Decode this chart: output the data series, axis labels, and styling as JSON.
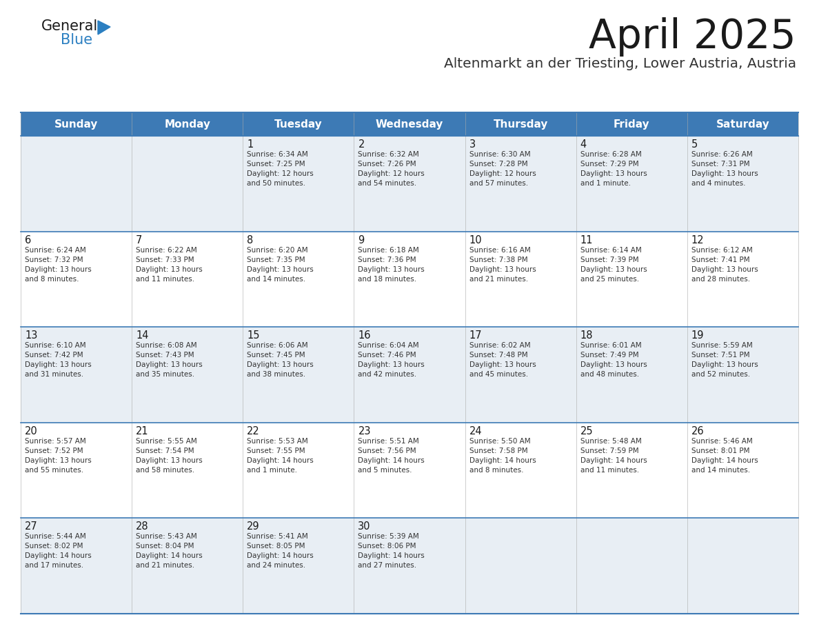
{
  "title": "April 2025",
  "subtitle": "Altenmarkt an der Triesting, Lower Austria, Austria",
  "title_color": "#1a1a1a",
  "subtitle_color": "#333333",
  "header_bg_color": "#3d7ab5",
  "header_text_color": "#ffffff",
  "cell_bg_color_odd": "#e8eef4",
  "cell_bg_color_even": "#ffffff",
  "grid_line_color": "#3d7ab5",
  "day_headers": [
    "Sunday",
    "Monday",
    "Tuesday",
    "Wednesday",
    "Thursday",
    "Friday",
    "Saturday"
  ],
  "text_color": "#333333",
  "day_num_color": "#1a1a1a",
  "logo_general_color": "#1a1a1a",
  "logo_blue_color": "#2b7fc1",
  "weeks": [
    [
      {
        "date": "",
        "sunrise": "",
        "sunset": "",
        "daylight": ""
      },
      {
        "date": "",
        "sunrise": "",
        "sunset": "",
        "daylight": ""
      },
      {
        "date": "1",
        "sunrise": "6:34 AM",
        "sunset": "7:25 PM",
        "daylight": "12 hours\nand 50 minutes."
      },
      {
        "date": "2",
        "sunrise": "6:32 AM",
        "sunset": "7:26 PM",
        "daylight": "12 hours\nand 54 minutes."
      },
      {
        "date": "3",
        "sunrise": "6:30 AM",
        "sunset": "7:28 PM",
        "daylight": "12 hours\nand 57 minutes."
      },
      {
        "date": "4",
        "sunrise": "6:28 AM",
        "sunset": "7:29 PM",
        "daylight": "13 hours\nand 1 minute."
      },
      {
        "date": "5",
        "sunrise": "6:26 AM",
        "sunset": "7:31 PM",
        "daylight": "13 hours\nand 4 minutes."
      }
    ],
    [
      {
        "date": "6",
        "sunrise": "6:24 AM",
        "sunset": "7:32 PM",
        "daylight": "13 hours\nand 8 minutes."
      },
      {
        "date": "7",
        "sunrise": "6:22 AM",
        "sunset": "7:33 PM",
        "daylight": "13 hours\nand 11 minutes."
      },
      {
        "date": "8",
        "sunrise": "6:20 AM",
        "sunset": "7:35 PM",
        "daylight": "13 hours\nand 14 minutes."
      },
      {
        "date": "9",
        "sunrise": "6:18 AM",
        "sunset": "7:36 PM",
        "daylight": "13 hours\nand 18 minutes."
      },
      {
        "date": "10",
        "sunrise": "6:16 AM",
        "sunset": "7:38 PM",
        "daylight": "13 hours\nand 21 minutes."
      },
      {
        "date": "11",
        "sunrise": "6:14 AM",
        "sunset": "7:39 PM",
        "daylight": "13 hours\nand 25 minutes."
      },
      {
        "date": "12",
        "sunrise": "6:12 AM",
        "sunset": "7:41 PM",
        "daylight": "13 hours\nand 28 minutes."
      }
    ],
    [
      {
        "date": "13",
        "sunrise": "6:10 AM",
        "sunset": "7:42 PM",
        "daylight": "13 hours\nand 31 minutes."
      },
      {
        "date": "14",
        "sunrise": "6:08 AM",
        "sunset": "7:43 PM",
        "daylight": "13 hours\nand 35 minutes."
      },
      {
        "date": "15",
        "sunrise": "6:06 AM",
        "sunset": "7:45 PM",
        "daylight": "13 hours\nand 38 minutes."
      },
      {
        "date": "16",
        "sunrise": "6:04 AM",
        "sunset": "7:46 PM",
        "daylight": "13 hours\nand 42 minutes."
      },
      {
        "date": "17",
        "sunrise": "6:02 AM",
        "sunset": "7:48 PM",
        "daylight": "13 hours\nand 45 minutes."
      },
      {
        "date": "18",
        "sunrise": "6:01 AM",
        "sunset": "7:49 PM",
        "daylight": "13 hours\nand 48 minutes."
      },
      {
        "date": "19",
        "sunrise": "5:59 AM",
        "sunset": "7:51 PM",
        "daylight": "13 hours\nand 52 minutes."
      }
    ],
    [
      {
        "date": "20",
        "sunrise": "5:57 AM",
        "sunset": "7:52 PM",
        "daylight": "13 hours\nand 55 minutes."
      },
      {
        "date": "21",
        "sunrise": "5:55 AM",
        "sunset": "7:54 PM",
        "daylight": "13 hours\nand 58 minutes."
      },
      {
        "date": "22",
        "sunrise": "5:53 AM",
        "sunset": "7:55 PM",
        "daylight": "14 hours\nand 1 minute."
      },
      {
        "date": "23",
        "sunrise": "5:51 AM",
        "sunset": "7:56 PM",
        "daylight": "14 hours\nand 5 minutes."
      },
      {
        "date": "24",
        "sunrise": "5:50 AM",
        "sunset": "7:58 PM",
        "daylight": "14 hours\nand 8 minutes."
      },
      {
        "date": "25",
        "sunrise": "5:48 AM",
        "sunset": "7:59 PM",
        "daylight": "14 hours\nand 11 minutes."
      },
      {
        "date": "26",
        "sunrise": "5:46 AM",
        "sunset": "8:01 PM",
        "daylight": "14 hours\nand 14 minutes."
      }
    ],
    [
      {
        "date": "27",
        "sunrise": "5:44 AM",
        "sunset": "8:02 PM",
        "daylight": "14 hours\nand 17 minutes."
      },
      {
        "date": "28",
        "sunrise": "5:43 AM",
        "sunset": "8:04 PM",
        "daylight": "14 hours\nand 21 minutes."
      },
      {
        "date": "29",
        "sunrise": "5:41 AM",
        "sunset": "8:05 PM",
        "daylight": "14 hours\nand 24 minutes."
      },
      {
        "date": "30",
        "sunrise": "5:39 AM",
        "sunset": "8:06 PM",
        "daylight": "14 hours\nand 27 minutes."
      },
      {
        "date": "",
        "sunrise": "",
        "sunset": "",
        "daylight": ""
      },
      {
        "date": "",
        "sunrise": "",
        "sunset": "",
        "daylight": ""
      },
      {
        "date": "",
        "sunrise": "",
        "sunset": "",
        "daylight": ""
      }
    ]
  ]
}
